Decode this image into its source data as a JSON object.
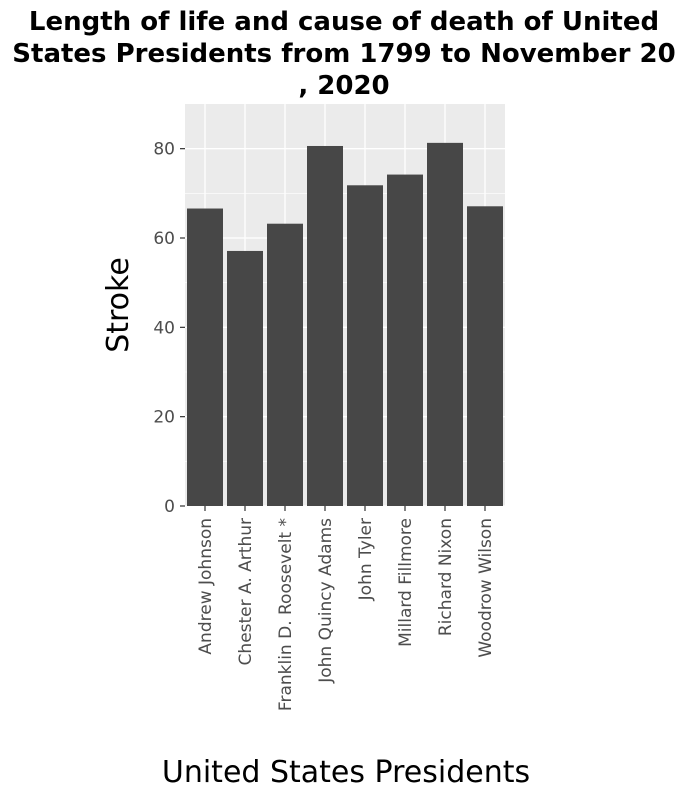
{
  "chart_data": {
    "type": "bar",
    "title_lines": [
      "Length of life and cause of death of United",
      "States Presidents from 1799 to November 20",
      ", 2020"
    ],
    "xlabel": "United States Presidents",
    "ylabel": "Stroke",
    "categories": [
      "Andrew Johnson",
      "Chester A. Arthur",
      "Franklin D. Roosevelt *",
      "John Quincy Adams",
      "John Tyler",
      "Millard Fillmore",
      "Richard Nixon",
      "Woodrow Wilson"
    ],
    "values": [
      66.6,
      57.1,
      63.2,
      80.6,
      71.8,
      74.2,
      81.3,
      67.1
    ],
    "ylim": [
      0,
      90
    ],
    "yticks": [
      0,
      20,
      40,
      60,
      80
    ],
    "grid": true,
    "colors": {
      "bar": "#474747",
      "panel": "#ebebeb",
      "gridline": "#ffffff"
    }
  }
}
